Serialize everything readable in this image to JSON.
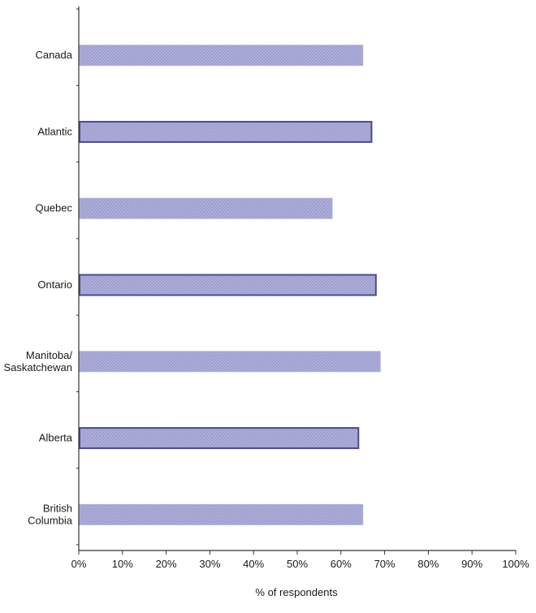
{
  "chart_data": {
    "type": "bar",
    "orientation": "horizontal",
    "title": "",
    "xlabel": "% of respondents",
    "ylabel": "",
    "xlim": [
      0,
      100
    ],
    "x_ticks": [
      0,
      10,
      20,
      30,
      40,
      50,
      60,
      70,
      80,
      90,
      100
    ],
    "x_tick_labels": [
      "0%",
      "10%",
      "20%",
      "30%",
      "40%",
      "50%",
      "60%",
      "70%",
      "80%",
      "90%",
      "100%"
    ],
    "categories": [
      [
        "Canada"
      ],
      [
        "Atlantic"
      ],
      [
        "Quebec"
      ],
      [
        "Ontario"
      ],
      [
        "Manitoba/",
        "Saskatchewan"
      ],
      [
        "Alberta"
      ],
      [
        "British",
        "Columbia"
      ]
    ],
    "values": [
      65,
      67,
      58,
      68,
      69,
      64,
      65
    ],
    "grid": false,
    "legend": "none",
    "colors": {
      "bar_fill": "#aaaad8",
      "bar_pattern": "#9595c8",
      "bar_stroke_solid": "#4a4a8e",
      "bar_stroke_light": "#b0b0dc",
      "axis": "#333333"
    },
    "outlined_bars": [
      false,
      true,
      false,
      true,
      false,
      true,
      false
    ]
  }
}
